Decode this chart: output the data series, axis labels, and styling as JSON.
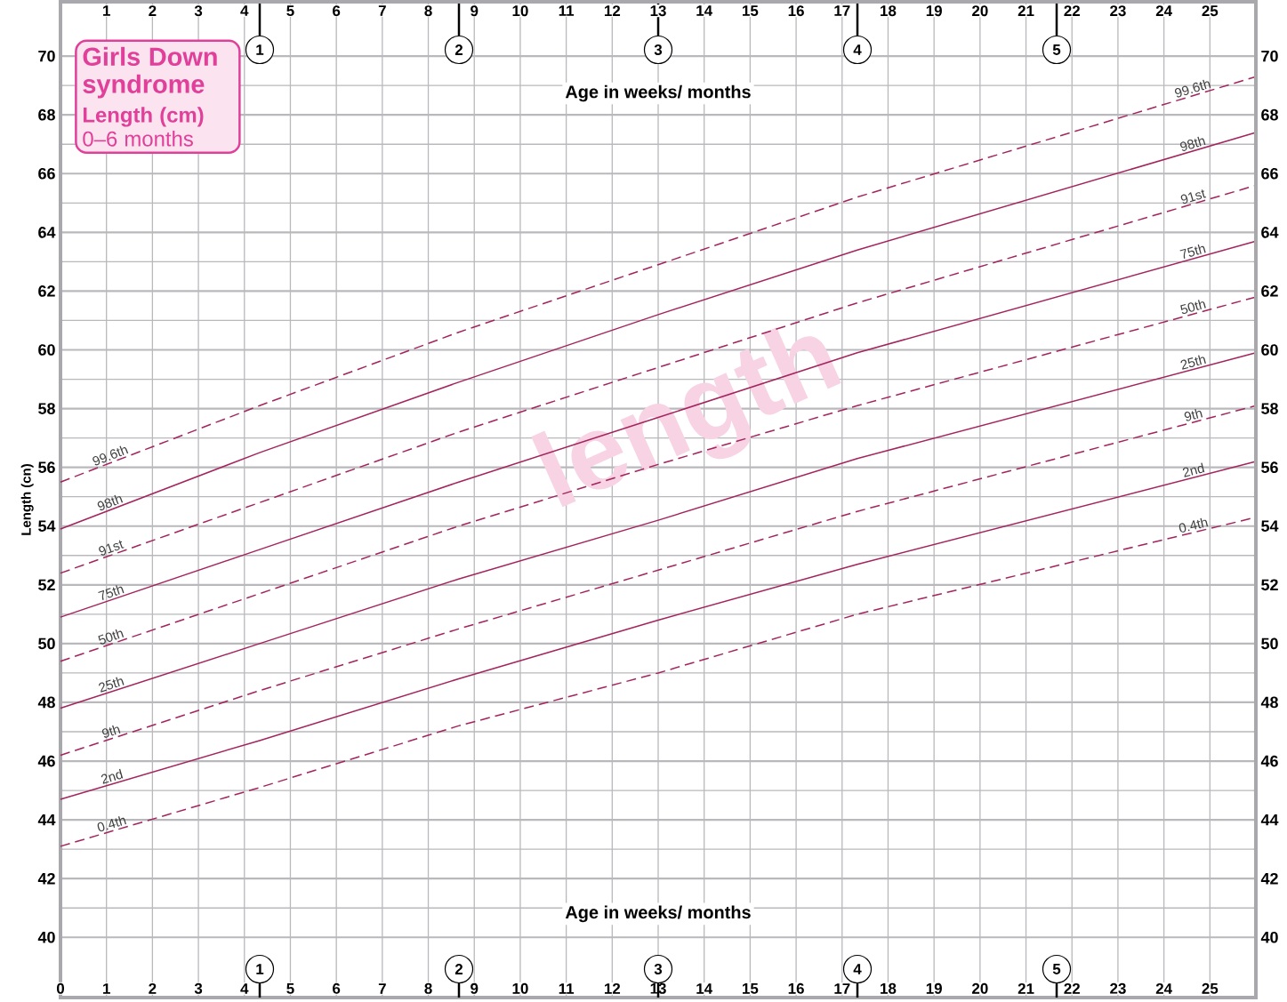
{
  "chart_data": {
    "type": "line",
    "title": "Girls Down syndrome",
    "subtitle": "Length (cm)",
    "ylabel": "Length (cn)",
    "xlabel": "Age in weeks/ months",
    "x2label": "Age in weeks/ months",
    "annotations": [
      "0–6 months",
      "length",
      "1",
      "2",
      "3",
      "4",
      "5"
    ],
    "x": [
      0,
      4.33,
      8.66,
      13,
      17.33,
      26
    ],
    "series": [
      {
        "name": "99.6th",
        "color": "#a3245e",
        "line_style": "dashed",
        "values": [
          55.5,
          58.1,
          60.6,
          62.9,
          65.2,
          69.3
        ]
      },
      {
        "name": "98th",
        "color": "#a3245e",
        "line_style": "solid",
        "values": [
          53.9,
          56.5,
          58.9,
          61.2,
          63.4,
          67.4
        ]
      },
      {
        "name": "91st",
        "color": "#a3245e",
        "line_style": "dashed",
        "values": [
          52.4,
          54.8,
          57.2,
          59.4,
          61.6,
          65.6
        ]
      },
      {
        "name": "75th",
        "color": "#a3245e",
        "line_style": "solid",
        "values": [
          50.9,
          53.2,
          55.5,
          57.7,
          59.9,
          63.7
        ]
      },
      {
        "name": "50th",
        "color": "#a3245e",
        "line_style": "dashed",
        "values": [
          49.4,
          51.7,
          54.0,
          56.1,
          58.1,
          61.8
        ]
      },
      {
        "name": "25th",
        "color": "#a3245e",
        "line_style": "solid",
        "values": [
          47.8,
          50.0,
          52.2,
          54.2,
          56.3,
          59.9
        ]
      },
      {
        "name": "9th",
        "color": "#a3245e",
        "line_style": "dashed",
        "values": [
          46.2,
          48.4,
          50.5,
          52.5,
          54.5,
          58.1
        ]
      },
      {
        "name": "2nd",
        "color": "#a3245e",
        "line_style": "solid",
        "values": [
          44.7,
          46.7,
          48.8,
          50.8,
          52.7,
          56.2
        ]
      },
      {
        "name": "0.4th",
        "color": "#a3245e",
        "line_style": "dashed",
        "values": [
          43.1,
          45.1,
          47.2,
          49.0,
          51.0,
          54.3
        ]
      }
    ],
    "xlim": [
      0,
      26
    ],
    "xticks": [
      0,
      1,
      2,
      3,
      4,
      5,
      6,
      7,
      8,
      9,
      10,
      11,
      12,
      13,
      14,
      15,
      16,
      17,
      18,
      19,
      20,
      21,
      22,
      23,
      24,
      25
    ],
    "x2lim": [
      0,
      26
    ],
    "x2ticks": [
      1,
      2,
      3,
      4,
      5,
      6,
      7,
      8,
      9,
      10,
      11,
      12,
      13,
      14,
      15,
      16,
      17,
      18,
      19,
      20,
      21,
      22,
      23,
      24,
      25
    ],
    "ylim": [
      37.95,
      71.85
    ],
    "yticks": [
      40,
      42,
      44,
      46,
      48,
      50,
      52,
      54,
      56,
      58,
      60,
      62,
      64,
      66,
      68,
      70
    ],
    "y2lim": [
      37.95,
      71.85
    ],
    "y2ticks": [
      40,
      42,
      44,
      46,
      48,
      50,
      52,
      54,
      56,
      58,
      60,
      62,
      64,
      66,
      68,
      70
    ],
    "grid": true
  }
}
